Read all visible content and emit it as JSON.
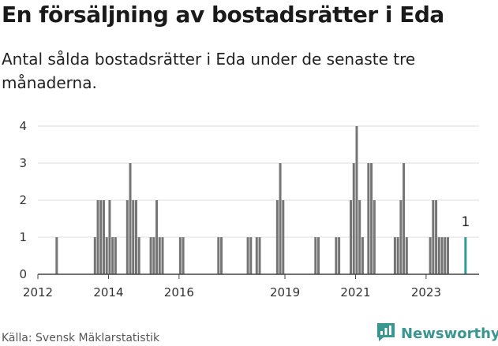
{
  "title": "En försäljning av bostadsrätter i Eda",
  "subtitle": "Antal sålda bostadsrätter i Eda under de senaste tre månaderna.",
  "source": "Källa: Svensk Mäklarstatistik",
  "logo_text": "Newsworthy",
  "colors": {
    "bar": "#757575",
    "highlight": "#2c9d8f",
    "grid": "#dddddd",
    "logo": "#3a9690"
  },
  "chart_data": {
    "type": "bar",
    "title": "En försäljning av bostadsrätter i Eda",
    "xlabel": "",
    "ylabel": "",
    "ylim": [
      0,
      4
    ],
    "yticks": [
      0,
      1,
      2,
      3,
      4
    ],
    "xticks": [
      "2012",
      "2014",
      "2016",
      "2019",
      "2021",
      "2023"
    ],
    "grid": true,
    "x_unit": "month index since 2012-01",
    "bars": [
      [
        6,
        1
      ],
      [
        19,
        1
      ],
      [
        20,
        2
      ],
      [
        21,
        2
      ],
      [
        22,
        2
      ],
      [
        23,
        1
      ],
      [
        24,
        2
      ],
      [
        25,
        1
      ],
      [
        26,
        1
      ],
      [
        30,
        2
      ],
      [
        31,
        3
      ],
      [
        32,
        2
      ],
      [
        33,
        2
      ],
      [
        34,
        1
      ],
      [
        38,
        1
      ],
      [
        39,
        1
      ],
      [
        40,
        2
      ],
      [
        41,
        1
      ],
      [
        42,
        1
      ],
      [
        48,
        1
      ],
      [
        49,
        1
      ],
      [
        61,
        1
      ],
      [
        62,
        1
      ],
      [
        71,
        1
      ],
      [
        72,
        1
      ],
      [
        74,
        1
      ],
      [
        75,
        1
      ],
      [
        81,
        2
      ],
      [
        82,
        3
      ],
      [
        83,
        2
      ],
      [
        94,
        1
      ],
      [
        95,
        1
      ],
      [
        101,
        1
      ],
      [
        102,
        1
      ],
      [
        106,
        2
      ],
      [
        107,
        3
      ],
      [
        108,
        4
      ],
      [
        109,
        2
      ],
      [
        110,
        1
      ],
      [
        112,
        3
      ],
      [
        113,
        3
      ],
      [
        114,
        2
      ],
      [
        121,
        1
      ],
      [
        122,
        1
      ],
      [
        123,
        2
      ],
      [
        124,
        3
      ],
      [
        125,
        1
      ],
      [
        133,
        1
      ],
      [
        134,
        2
      ],
      [
        135,
        2
      ],
      [
        136,
        1
      ],
      [
        137,
        1
      ],
      [
        138,
        1
      ],
      [
        139,
        1
      ]
    ],
    "highlight": {
      "x": 145,
      "value": 1,
      "label": "1"
    }
  }
}
